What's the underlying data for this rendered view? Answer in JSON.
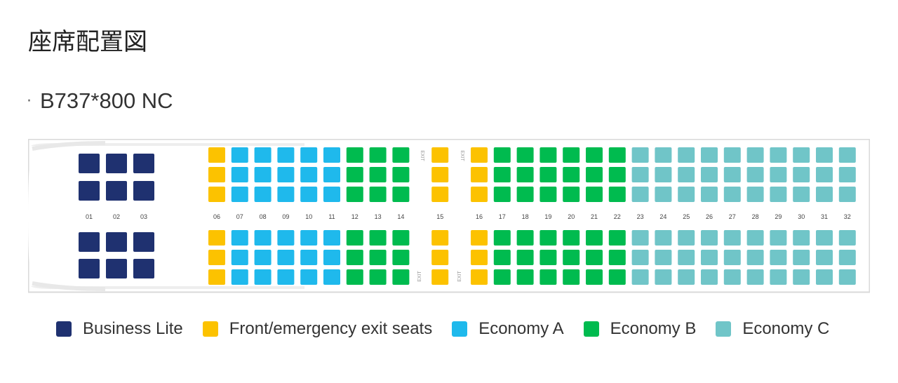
{
  "page_title": "座席配置図",
  "aircraft": "B737*800 NC",
  "seat_map": {
    "row_labels": [
      "01",
      "02",
      "03",
      "06",
      "07",
      "08",
      "09",
      "10",
      "11",
      "12",
      "13",
      "14",
      "15",
      "16",
      "17",
      "18",
      "19",
      "20",
      "21",
      "22",
      "23",
      "24",
      "25",
      "26",
      "27",
      "28",
      "29",
      "30",
      "31",
      "32"
    ],
    "exit_label": "EXIT",
    "classes": {
      "business": "#1f3170",
      "exit": "#fcc200",
      "economy_a": "#1fb9ec",
      "economy_b": "#00bb4f",
      "economy_c": "#70c5c8"
    },
    "business_rows": [
      "01",
      "02",
      "03"
    ],
    "rows": [
      {
        "label": "06",
        "class": "exit"
      },
      {
        "label": "07",
        "class": "economy_a"
      },
      {
        "label": "08",
        "class": "economy_a"
      },
      {
        "label": "09",
        "class": "economy_a"
      },
      {
        "label": "10",
        "class": "economy_a"
      },
      {
        "label": "11",
        "class": "economy_a"
      },
      {
        "label": "12",
        "class": "economy_b"
      },
      {
        "label": "13",
        "class": "economy_b"
      },
      {
        "label": "14",
        "class": "economy_b"
      },
      {
        "label": "15",
        "class": "exit"
      },
      {
        "label": "16",
        "class": "exit"
      },
      {
        "label": "17",
        "class": "economy_b"
      },
      {
        "label": "18",
        "class": "economy_b"
      },
      {
        "label": "19",
        "class": "economy_b"
      },
      {
        "label": "20",
        "class": "economy_b"
      },
      {
        "label": "21",
        "class": "economy_b"
      },
      {
        "label": "22",
        "class": "economy_b"
      },
      {
        "label": "23",
        "class": "economy_c"
      },
      {
        "label": "24",
        "class": "economy_c"
      },
      {
        "label": "25",
        "class": "economy_c"
      },
      {
        "label": "26",
        "class": "economy_c"
      },
      {
        "label": "27",
        "class": "economy_c"
      },
      {
        "label": "28",
        "class": "economy_c"
      },
      {
        "label": "29",
        "class": "economy_c"
      },
      {
        "label": "30",
        "class": "economy_c"
      },
      {
        "label": "31",
        "class": "economy_c"
      },
      {
        "label": "32",
        "class": "economy_c"
      }
    ]
  },
  "legend": [
    {
      "label": "Business Lite",
      "color": "#1f3170"
    },
    {
      "label": "Front/emergency exit seats",
      "color": "#fcc200"
    },
    {
      "label": "Economy A",
      "color": "#1fb9ec"
    },
    {
      "label": "Economy B",
      "color": "#00bb4f"
    },
    {
      "label": "Economy C",
      "color": "#70c5c8"
    }
  ]
}
